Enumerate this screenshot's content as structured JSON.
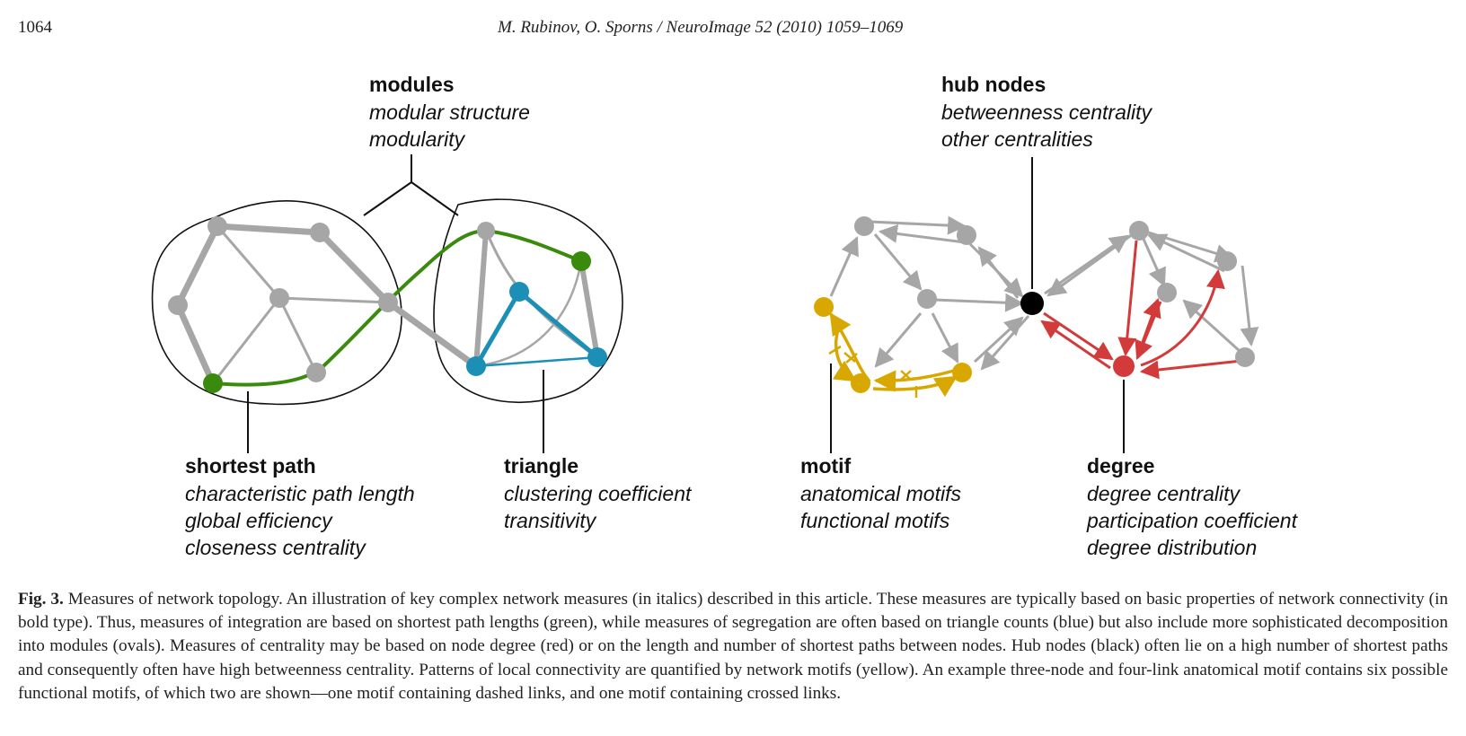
{
  "header": {
    "page_number": "1064",
    "running_head": "M. Rubinov, O. Sporns / NeuroImage 52 (2010) 1059–1069"
  },
  "figure": {
    "labels": {
      "modules": {
        "title": "modules",
        "items": [
          "modular structure",
          "modularity"
        ]
      },
      "shortest_path": {
        "title": "shortest path",
        "items": [
          "characteristic path length",
          "global efficiency",
          "closeness centrality"
        ]
      },
      "triangle": {
        "title": "triangle",
        "items": [
          "clustering coefficient",
          "transitivity"
        ]
      },
      "hub_nodes": {
        "title": "hub nodes",
        "items": [
          "betweenness centrality",
          "other centralities"
        ]
      },
      "motif": {
        "title": "motif",
        "items": [
          "anatomical motifs",
          "functional motifs"
        ]
      },
      "degree": {
        "title": "degree",
        "items": [
          "degree centrality",
          "participation coefficient",
          "degree distribution"
        ]
      }
    },
    "colors": {
      "edge_gray": "#a6a6a6",
      "node_gray": "#a6a6a6",
      "shortest_path_green": "#3a8a0e",
      "triangle_blue": "#1b8fb5",
      "degree_red": "#d33a3a",
      "motif_yellow": "#d8a800",
      "hub_black": "#000000"
    }
  },
  "caption": {
    "label": "Fig. 3.",
    "text": " Measures of network topology. An illustration of key complex network measures (in italics) described in this article. These measures are typically based on basic properties of network connectivity (in bold type). Thus, measures of integration are based on shortest path lengths (green), while measures of segregation are often based on triangle counts (blue) but also include more sophisticated decomposition into modules (ovals). Measures of centrality may be based on node degree (red) or on the length and number of shortest paths between nodes. Hub nodes (black) often lie on a high number of shortest paths and consequently often have high betweenness centrality. Patterns of local connectivity are quantified by network motifs (yellow). An example three-node and four-link anatomical motif contains six possible functional motifs, of which two are shown—one motif containing dashed links, and one motif containing crossed links."
  }
}
